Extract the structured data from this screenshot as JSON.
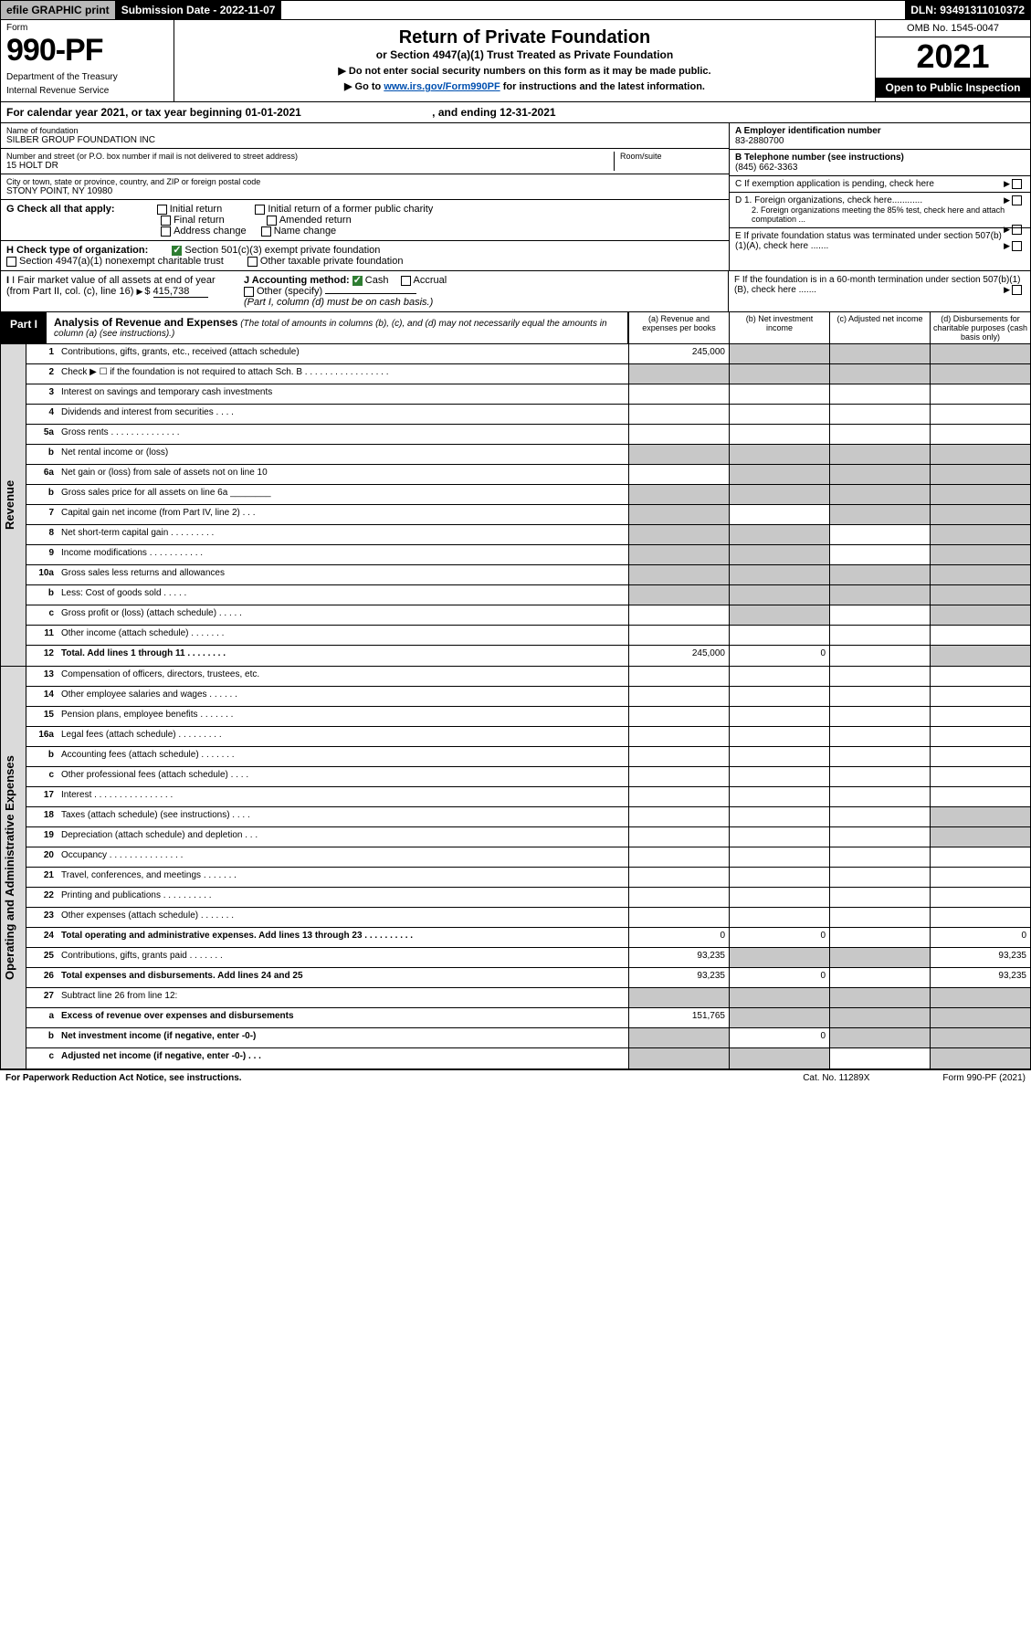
{
  "top": {
    "efile": "efile GRAPHIC print",
    "subdate_label": "Submission Date - ",
    "subdate": "2022-11-07",
    "dln_label": "DLN: ",
    "dln": "93491311010372"
  },
  "hdr": {
    "form_word": "Form",
    "form_num": "990-PF",
    "dep1": "Department of the Treasury",
    "dep2": "Internal Revenue Service",
    "title": "Return of Private Foundation",
    "subtitle": "or Section 4947(a)(1) Trust Treated as Private Foundation",
    "note1": "▶ Do not enter social security numbers on this form as it may be made public.",
    "note2_pre": "▶ Go to ",
    "note2_link": "www.irs.gov/Form990PF",
    "note2_post": " for instructions and the latest information.",
    "omb": "OMB No. 1545-0047",
    "year": "2021",
    "open": "Open to Public Inspection"
  },
  "cal": {
    "text": "For calendar year 2021, or tax year beginning 01-01-2021",
    "end": ", and ending 12-31-2021"
  },
  "id": {
    "name_lbl": "Name of foundation",
    "name": "SILBER GROUP FOUNDATION INC",
    "addr_lbl": "Number and street (or P.O. box number if mail is not delivered to street address)",
    "room_lbl": "Room/suite",
    "addr": "15 HOLT DR",
    "city_lbl": "City or town, state or province, country, and ZIP or foreign postal code",
    "city": "STONY POINT, NY  10980",
    "a_lbl": "A Employer identification number",
    "a_val": "83-2880700",
    "b_lbl": "B Telephone number (see instructions)",
    "b_val": "(845) 662-3363",
    "c_lbl": "C If exemption application is pending, check here",
    "d1": "D 1. Foreign organizations, check here............",
    "d2": "2. Foreign organizations meeting the 85% test, check here and attach computation ...",
    "e": "E  If private foundation status was terminated under section 507(b)(1)(A), check here .......",
    "f": "F  If the foundation is in a 60-month termination under section 507(b)(1)(B), check here .......",
    "g_lbl": "G Check all that apply:",
    "g_opts": [
      "Initial return",
      "Initial return of a former public charity",
      "Final return",
      "Amended return",
      "Address change",
      "Name change"
    ],
    "h_lbl": "H Check type of organization:",
    "h1": "Section 501(c)(3) exempt private foundation",
    "h2": "Section 4947(a)(1) nonexempt charitable trust",
    "h3": "Other taxable private foundation",
    "i_lbl": "I Fair market value of all assets at end of year (from Part II, col. (c), line 16)",
    "i_val": "415,738",
    "j_lbl": "J Accounting method:",
    "j_cash": "Cash",
    "j_accr": "Accrual",
    "j_other": "Other (specify)",
    "j_note": "(Part I, column (d) must be on cash basis.)"
  },
  "part1": {
    "tab": "Part I",
    "title": "Analysis of Revenue and Expenses",
    "note": "(The total of amounts in columns (b), (c), and (d) may not necessarily equal the amounts in column (a) (see instructions).)",
    "cols": [
      "(a)  Revenue and expenses per books",
      "(b)  Net investment income",
      "(c)  Adjusted net income",
      "(d)  Disbursements for charitable purposes (cash basis only)"
    ]
  },
  "sides": {
    "rev": "Revenue",
    "exp": "Operating and Administrative Expenses"
  },
  "rows": [
    {
      "n": "1",
      "l": "Contributions, gifts, grants, etc., received (attach schedule)",
      "a": "245,000",
      "shade": [
        "b",
        "c",
        "d"
      ]
    },
    {
      "n": "2",
      "l": "Check ▶ ☐ if the foundation is not required to attach Sch. B  . . . . . . . . . . . . . . . . .",
      "shade": [
        "a",
        "b",
        "c",
        "d"
      ]
    },
    {
      "n": "3",
      "l": "Interest on savings and temporary cash investments"
    },
    {
      "n": "4",
      "l": "Dividends and interest from securities  . . . ."
    },
    {
      "n": "5a",
      "l": "Gross rents  . . . . . . . . . . . . . ."
    },
    {
      "n": "b",
      "l": "Net rental income or (loss)",
      "shade": [
        "a",
        "b",
        "c",
        "d"
      ]
    },
    {
      "n": "6a",
      "l": "Net gain or (loss) from sale of assets not on line 10",
      "shade": [
        "b",
        "c",
        "d"
      ]
    },
    {
      "n": "b",
      "l": "Gross sales price for all assets on line 6a ________",
      "shade": [
        "a",
        "b",
        "c",
        "d"
      ]
    },
    {
      "n": "7",
      "l": "Capital gain net income (from Part IV, line 2)  . . .",
      "shade": [
        "a",
        "c",
        "d"
      ]
    },
    {
      "n": "8",
      "l": "Net short-term capital gain  . . . . . . . . .",
      "shade": [
        "a",
        "b",
        "d"
      ]
    },
    {
      "n": "9",
      "l": "Income modifications  . . . . . . . . . . .",
      "shade": [
        "a",
        "b",
        "d"
      ]
    },
    {
      "n": "10a",
      "l": "Gross sales less returns and allowances",
      "shade": [
        "a",
        "b",
        "c",
        "d"
      ]
    },
    {
      "n": "b",
      "l": "Less: Cost of goods sold  . . . . .",
      "shade": [
        "a",
        "b",
        "c",
        "d"
      ]
    },
    {
      "n": "c",
      "l": "Gross profit or (loss) (attach schedule)  . . . . .",
      "shade": [
        "b",
        "d"
      ]
    },
    {
      "n": "11",
      "l": "Other income (attach schedule)  . . . . . . ."
    },
    {
      "n": "12",
      "l": "Total. Add lines 1 through 11  . . . . . . . .",
      "a": "245,000",
      "b": "0",
      "shade": [
        "d"
      ],
      "bold": true
    }
  ],
  "exp_rows": [
    {
      "n": "13",
      "l": "Compensation of officers, directors, trustees, etc."
    },
    {
      "n": "14",
      "l": "Other employee salaries and wages  . . . . . ."
    },
    {
      "n": "15",
      "l": "Pension plans, employee benefits  . . . . . . ."
    },
    {
      "n": "16a",
      "l": "Legal fees (attach schedule)  . . . . . . . . ."
    },
    {
      "n": "b",
      "l": "Accounting fees (attach schedule)  . . . . . . ."
    },
    {
      "n": "c",
      "l": "Other professional fees (attach schedule)  . . . ."
    },
    {
      "n": "17",
      "l": "Interest  . . . . . . . . . . . . . . . ."
    },
    {
      "n": "18",
      "l": "Taxes (attach schedule) (see instructions)  . . . .",
      "shade": [
        "d"
      ]
    },
    {
      "n": "19",
      "l": "Depreciation (attach schedule) and depletion  . . .",
      "shade": [
        "d"
      ]
    },
    {
      "n": "20",
      "l": "Occupancy  . . . . . . . . . . . . . . ."
    },
    {
      "n": "21",
      "l": "Travel, conferences, and meetings  . . . . . . ."
    },
    {
      "n": "22",
      "l": "Printing and publications  . . . . . . . . . ."
    },
    {
      "n": "23",
      "l": "Other expenses (attach schedule)  . . . . . . ."
    },
    {
      "n": "24",
      "l": "Total operating and administrative expenses. Add lines 13 through 23  . . . . . . . . . .",
      "a": "0",
      "b": "0",
      "d": "0",
      "bold": true
    },
    {
      "n": "25",
      "l": "Contributions, gifts, grants paid  . . . . . . .",
      "a": "93,235",
      "d": "93,235",
      "shade": [
        "b",
        "c"
      ]
    },
    {
      "n": "26",
      "l": "Total expenses and disbursements. Add lines 24 and 25",
      "a": "93,235",
      "b": "0",
      "d": "93,235",
      "bold": true
    },
    {
      "n": "27",
      "l": "Subtract line 26 from line 12:",
      "shade": [
        "a",
        "b",
        "c",
        "d"
      ]
    },
    {
      "n": "a",
      "l": "Excess of revenue over expenses and disbursements",
      "a": "151,765",
      "shade": [
        "b",
        "c",
        "d"
      ],
      "bold": true
    },
    {
      "n": "b",
      "l": "Net investment income (if negative, enter -0-)",
      "b": "0",
      "shade": [
        "a",
        "c",
        "d"
      ],
      "bold": true
    },
    {
      "n": "c",
      "l": "Adjusted net income (if negative, enter -0-)  . . .",
      "shade": [
        "a",
        "b",
        "d"
      ],
      "bold": true
    }
  ],
  "footer": {
    "l": "For Paperwork Reduction Act Notice, see instructions.",
    "m": "Cat. No. 11289X",
    "r": "Form 990-PF (2021)"
  },
  "colors": {
    "black": "#000000",
    "gray_btn": "#b8b8b8",
    "gray_side": "#dadada",
    "gray_shade": "#c8c8c8",
    "green": "#2e7d32",
    "link": "#0050b0"
  }
}
